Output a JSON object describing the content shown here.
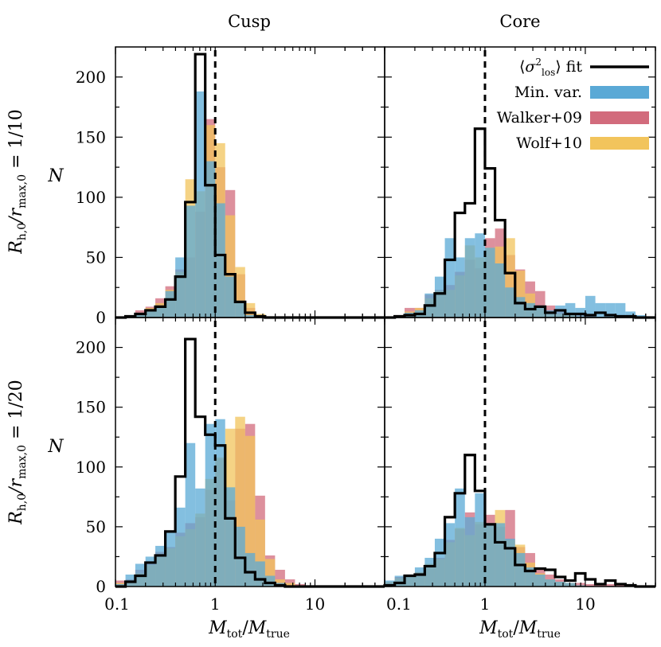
{
  "figure": {
    "col_titles": [
      "Cusp",
      "Core"
    ],
    "row_labels": [
      "R_h,0/r_max,0 = 1/10",
      "R_h,0/r_max,0 = 1/20"
    ],
    "ylabel": "N",
    "xlabel": "M_tot/M_true",
    "x_tick_labels": [
      "0.1",
      "1",
      "10"
    ],
    "y_tick_labels": [
      "0",
      "50",
      "100",
      "150",
      "200"
    ]
  },
  "legend": {
    "placement": "top-right of Core panel (row 1)",
    "entries": [
      {
        "label": "⟨σ²_los⟩ fit",
        "kind": "line",
        "color": "#000000"
      },
      {
        "label": "Min. var.",
        "kind": "patch",
        "color": "#5aa9d6"
      },
      {
        "label": "Walker+09",
        "kind": "patch",
        "color": "#d26b7c"
      },
      {
        "label": "Wolf+10",
        "kind": "patch",
        "color": "#f2c45c"
      }
    ]
  },
  "colors": {
    "min_var": "#5aa9d6",
    "walker": "#d26b7c",
    "wolf": "#f2c45c",
    "fit": "#000000"
  },
  "chart_data": [
    {
      "type": "histogram",
      "title": "Cusp",
      "row": "R_h,0/r_max,0 = 1/10",
      "xscale": "log",
      "xlim": [
        0.1,
        50
      ],
      "ylim": [
        0,
        225
      ],
      "reference_line_x": 1,
      "bin_edges": [
        0.1,
        0.126,
        0.158,
        0.2,
        0.251,
        0.316,
        0.398,
        0.501,
        0.631,
        0.794,
        1.0,
        1.259,
        1.585,
        1.995,
        2.512,
        3.162,
        3.981,
        5.012,
        6.31,
        7.943,
        10.0,
        12.59,
        15.85,
        19.95,
        25.12,
        31.62,
        39.81,
        50.12
      ],
      "series": [
        {
          "name": "Walker+09",
          "values": [
            0,
            1,
            6,
            9,
            16,
            26,
            40,
            50,
            88,
            165,
            125,
            106,
            36,
            8,
            2,
            1,
            0,
            0,
            0,
            0,
            0,
            0,
            0,
            0,
            0,
            0,
            0
          ]
        },
        {
          "name": "Wolf+10",
          "values": [
            0,
            0,
            3,
            8,
            12,
            23,
            38,
            115,
            105,
            160,
            145,
            85,
            42,
            12,
            3,
            1,
            0,
            0,
            0,
            0,
            0,
            0,
            0,
            0,
            0,
            0,
            0
          ]
        },
        {
          "name": "Min. var.",
          "values": [
            0,
            0,
            2,
            5,
            10,
            22,
            50,
            93,
            188,
            130,
            95,
            34,
            14,
            2,
            1,
            0,
            0,
            0,
            0,
            0,
            0,
            0,
            0,
            0,
            0,
            0,
            0
          ]
        },
        {
          "name": "⟨σ²_los⟩ fit",
          "values": [
            0,
            1,
            3,
            6,
            9,
            15,
            34,
            96,
            219,
            110,
            52,
            36,
            13,
            4,
            1,
            0,
            0,
            0,
            0,
            0,
            0,
            0,
            0,
            0,
            0,
            0,
            0
          ]
        }
      ]
    },
    {
      "type": "histogram",
      "title": "Core",
      "row": "R_h,0/r_max,0 = 1/10",
      "xscale": "log",
      "xlim": [
        0.1,
        50
      ],
      "ylim": [
        0,
        225
      ],
      "reference_line_x": 1,
      "bin_edges": [
        0.1,
        0.126,
        0.158,
        0.2,
        0.251,
        0.316,
        0.398,
        0.501,
        0.631,
        0.794,
        1.0,
        1.259,
        1.585,
        1.995,
        2.512,
        3.162,
        3.981,
        5.012,
        6.31,
        7.943,
        10.0,
        12.59,
        15.85,
        19.95,
        25.12,
        31.62,
        39.81,
        50.12
      ],
      "series": [
        {
          "name": "Walker+09",
          "values": [
            0,
            2,
            8,
            8,
            19,
            23,
            27,
            38,
            48,
            41,
            66,
            74,
            52,
            40,
            30,
            22,
            10,
            5,
            3,
            2,
            1,
            0,
            0,
            0,
            0,
            0,
            0
          ]
        },
        {
          "name": "Wolf+10",
          "values": [
            0,
            2,
            5,
            8,
            16,
            22,
            23,
            35,
            60,
            50,
            58,
            59,
            66,
            39,
            20,
            9,
            5,
            3,
            2,
            1,
            0,
            0,
            0,
            0,
            0,
            0,
            0
          ]
        },
        {
          "name": "Min. var.",
          "values": [
            0,
            2,
            4,
            6,
            20,
            34,
            66,
            50,
            66,
            70,
            58,
            45,
            25,
            17,
            12,
            10,
            6,
            10,
            12,
            8,
            18,
            12,
            12,
            12,
            5,
            2,
            0
          ]
        },
        {
          "name": "⟨σ²_los⟩ fit",
          "values": [
            0,
            1,
            2,
            3,
            10,
            20,
            48,
            87,
            95,
            157,
            124,
            81,
            37,
            12,
            7,
            9,
            4,
            6,
            3,
            3,
            2,
            4,
            2,
            1,
            1,
            0,
            0
          ]
        }
      ]
    },
    {
      "type": "histogram",
      "title": "",
      "row": "R_h,0/r_max,0 = 1/20",
      "xscale": "log",
      "xlim": [
        0.1,
        50
      ],
      "ylim": [
        0,
        225
      ],
      "reference_line_x": 1,
      "bin_edges": [
        0.1,
        0.126,
        0.158,
        0.2,
        0.251,
        0.316,
        0.398,
        0.501,
        0.631,
        0.794,
        1.0,
        1.259,
        1.585,
        1.995,
        2.512,
        3.162,
        3.981,
        5.012,
        6.31,
        7.943,
        10.0,
        12.59,
        15.85,
        19.95,
        25.12,
        31.62,
        39.81,
        50.12
      ],
      "series": [
        {
          "name": "Walker+09",
          "values": [
            5,
            6,
            14,
            20,
            29,
            33,
            45,
            53,
            58,
            81,
            107,
            72,
            132,
            136,
            76,
            26,
            14,
            6,
            2,
            1,
            0,
            0,
            0,
            0,
            0,
            0,
            0
          ]
        },
        {
          "name": "Wolf+10",
          "values": [
            3,
            5,
            11,
            18,
            25,
            32,
            42,
            48,
            61,
            90,
            108,
            132,
            142,
            126,
            56,
            23,
            6,
            3,
            1,
            0,
            0,
            0,
            0,
            0,
            0,
            0,
            0
          ]
        },
        {
          "name": "Min. var.",
          "values": [
            2,
            10,
            19,
            25,
            34,
            45,
            66,
            120,
            82,
            136,
            140,
            83,
            50,
            28,
            21,
            9,
            3,
            1,
            0,
            0,
            0,
            0,
            0,
            0,
            0,
            0,
            0
          ]
        },
        {
          "name": "⟨σ²_los⟩ fit",
          "values": [
            0,
            4,
            9,
            20,
            26,
            46,
            92,
            207,
            142,
            127,
            118,
            57,
            24,
            12,
            6,
            3,
            1,
            0,
            0,
            0,
            0,
            0,
            0,
            0,
            0,
            0,
            0
          ]
        }
      ]
    },
    {
      "type": "histogram",
      "title": "",
      "row": "R_h,0/r_max,0 = 1/20",
      "xscale": "log",
      "xlim": [
        0.1,
        50
      ],
      "ylim": [
        0,
        225
      ],
      "reference_line_x": 1,
      "bin_edges": [
        0.1,
        0.126,
        0.158,
        0.2,
        0.251,
        0.316,
        0.398,
        0.501,
        0.631,
        0.794,
        1.0,
        1.259,
        1.585,
        1.995,
        2.512,
        3.162,
        3.981,
        5.012,
        6.31,
        7.943,
        10.0,
        12.59,
        15.85,
        19.95,
        25.12,
        31.62,
        39.81,
        50.12
      ],
      "series": [
        {
          "name": "Walker+09",
          "values": [
            4,
            8,
            9,
            12,
            16,
            24,
            39,
            48,
            62,
            52,
            60,
            50,
            64,
            33,
            28,
            15,
            10,
            6,
            3,
            3,
            2,
            1,
            2,
            1,
            1,
            0,
            0
          ]
        },
        {
          "name": "Wolf+10",
          "values": [
            4,
            7,
            9,
            12,
            19,
            23,
            37,
            49,
            43,
            54,
            52,
            64,
            39,
            35,
            20,
            11,
            6,
            4,
            3,
            1,
            0,
            0,
            0,
            0,
            0,
            0,
            0
          ]
        },
        {
          "name": "Min. var.",
          "values": [
            5,
            9,
            10,
            16,
            24,
            40,
            53,
            82,
            58,
            78,
            52,
            53,
            40,
            28,
            16,
            10,
            6,
            4,
            3,
            1,
            0,
            0,
            0,
            0,
            0,
            0,
            0
          ]
        },
        {
          "name": "⟨σ²_los⟩ fit",
          "values": [
            1,
            3,
            9,
            10,
            17,
            28,
            58,
            78,
            110,
            80,
            52,
            37,
            32,
            18,
            13,
            15,
            14,
            8,
            5,
            11,
            6,
            2,
            5,
            2,
            1,
            0,
            0
          ]
        }
      ]
    }
  ]
}
